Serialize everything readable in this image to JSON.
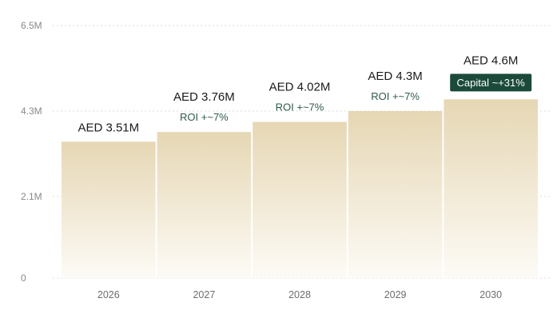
{
  "chart_data": {
    "type": "bar",
    "categories": [
      "2026",
      "2027",
      "2028",
      "2029",
      "2030"
    ],
    "values": [
      3.51,
      3.76,
      4.02,
      4.3,
      4.6
    ],
    "value_labels": [
      "AED 3.51M",
      "AED 3.76M",
      "AED 4.02M",
      "AED 4.3M",
      "AED 4.6M"
    ],
    "annotations": [
      {
        "category": "2027",
        "text": "ROI +~7%",
        "style": "text"
      },
      {
        "category": "2028",
        "text": "ROI +~7%",
        "style": "text"
      },
      {
        "category": "2029",
        "text": "ROI +~7%",
        "style": "text"
      },
      {
        "category": "2030",
        "text": "Capital ~+31%",
        "style": "badge"
      }
    ],
    "y_ticks": [
      {
        "value": 0,
        "label": "0"
      },
      {
        "value": 2.1,
        "label": "2.1M"
      },
      {
        "value": 4.3,
        "label": "4.3M"
      },
      {
        "value": 6.5,
        "label": "6.5M"
      }
    ],
    "ylim": [
      0,
      6.5
    ],
    "title": "",
    "xlabel": "",
    "ylabel": "",
    "grid": "horizontal-dotted",
    "colors": {
      "bar_top": "#e6d7b4",
      "bar_bottom": "#fdfbf6",
      "badge_bg": "#1b4a3a",
      "roi_text": "#2e5a4a",
      "grid": "#dedede"
    }
  }
}
